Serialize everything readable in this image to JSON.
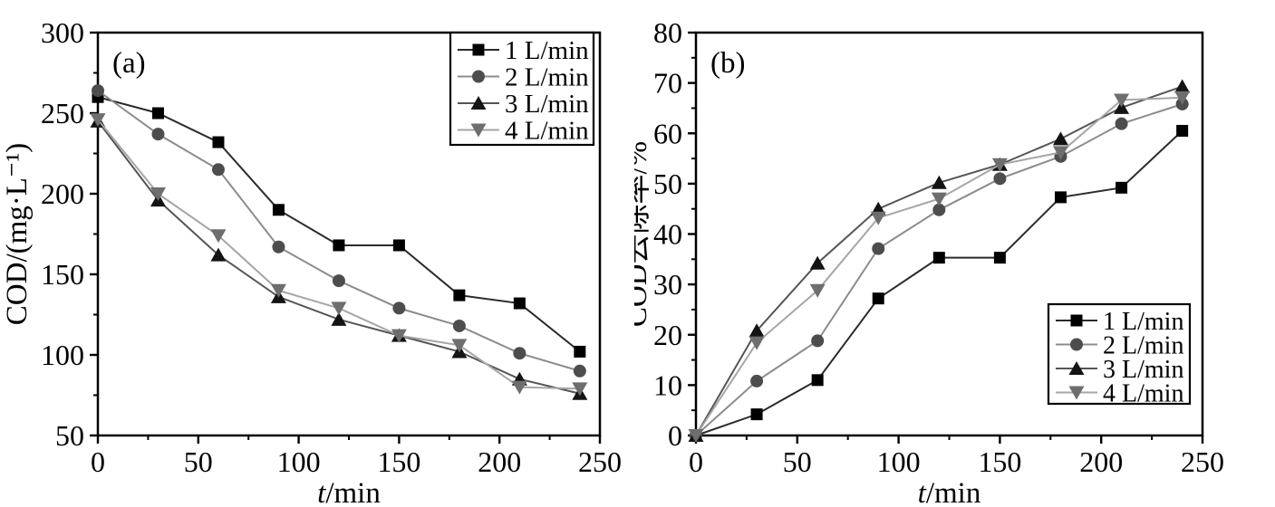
{
  "figure": {
    "background": "#ffffff",
    "description": "Two-panel line chart of COD vs time and COD removal rate vs time at four aeration rates"
  },
  "chart_data": [
    {
      "id": "a",
      "type": "line",
      "panel_label": "(a)",
      "xlabel": {
        "italic": "t",
        "rest": "/min"
      },
      "ylabel": "COD/(mg·L⁻¹)",
      "xlim": [
        0,
        250
      ],
      "ylim": [
        50,
        300
      ],
      "x_major_step": 50,
      "x_minor_step": 25,
      "y_major_step": 50,
      "y_minor_step": 25,
      "grid": false,
      "legend_position": "top-right",
      "x": [
        0,
        30,
        60,
        90,
        120,
        150,
        180,
        210,
        240
      ],
      "series": [
        {
          "name": "1 L/min",
          "marker": "square",
          "marker_color": "#000000",
          "line_color": "#2b2b2b",
          "values": [
            260,
            250,
            232,
            190,
            168,
            168,
            137,
            132,
            102
          ]
        },
        {
          "name": "2 L/min",
          "marker": "circle",
          "marker_color": "#4d4d4d",
          "line_color": "#8c8c8c",
          "values": [
            264,
            237,
            215,
            167,
            146,
            129,
            118,
            101,
            90
          ]
        },
        {
          "name": "3 L/min",
          "marker": "triangle-up",
          "marker_color": "#141414",
          "line_color": "#555555",
          "values": [
            245,
            196,
            162,
            136,
            122,
            112,
            102,
            85,
            76
          ]
        },
        {
          "name": "4 L/min",
          "marker": "triangle-down",
          "marker_color": "#6e6e6e",
          "line_color": "#a6a6a6",
          "values": [
            246,
            200,
            174,
            140,
            129,
            112,
            106,
            80,
            79
          ]
        }
      ]
    },
    {
      "id": "b",
      "type": "line",
      "panel_label": "(b)",
      "xlabel": {
        "italic": "t",
        "rest": "/min"
      },
      "ylabel": "COD去除率/%",
      "xlim": [
        0,
        250
      ],
      "ylim": [
        0,
        80
      ],
      "x_major_step": 50,
      "x_minor_step": 25,
      "y_major_step": 10,
      "y_minor_step": 5,
      "grid": false,
      "legend_position": "bottom-right",
      "x": [
        0,
        30,
        60,
        90,
        120,
        150,
        180,
        210,
        240
      ],
      "series": [
        {
          "name": "1 L/min",
          "marker": "square",
          "marker_color": "#000000",
          "line_color": "#2b2b2b",
          "values": [
            0,
            4.2,
            11,
            27.2,
            35.3,
            35.3,
            47.3,
            49.2,
            60.5
          ]
        },
        {
          "name": "2 L/min",
          "marker": "circle",
          "marker_color": "#4d4d4d",
          "line_color": "#8c8c8c",
          "values": [
            0,
            10.8,
            18.8,
            37.1,
            44.8,
            51,
            55.4,
            61.9,
            65.8
          ]
        },
        {
          "name": "3 L/min",
          "marker": "triangle-up",
          "marker_color": "#141414",
          "line_color": "#555555",
          "values": [
            0,
            20.8,
            34.2,
            45,
            50.2,
            53.8,
            58.9,
            65.1,
            69.3
          ]
        },
        {
          "name": "4 L/min",
          "marker": "triangle-down",
          "marker_color": "#6e6e6e",
          "line_color": "#a6a6a6",
          "values": [
            0,
            18.4,
            28.8,
            43.2,
            47,
            53.8,
            56.2,
            66.6,
            67.1
          ]
        }
      ]
    }
  ]
}
